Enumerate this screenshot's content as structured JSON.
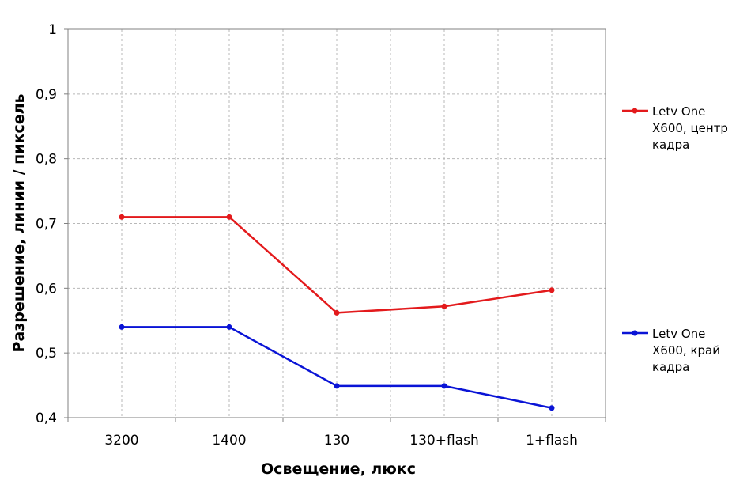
{
  "chart_data": {
    "type": "line",
    "title": "",
    "xlabel": "Освещение, люкс",
    "ylabel": "Разрешение, линии / пиксель",
    "categories": [
      "3200",
      "1400",
      "130",
      "130+flash",
      "1+flash"
    ],
    "ylim": [
      0.4,
      1.0
    ],
    "yticks": [
      0.4,
      0.5,
      0.6,
      0.7,
      0.8,
      0.9,
      1.0
    ],
    "ytick_labels": [
      "0,4",
      "0,5",
      "0,6",
      "0,7",
      "0,8",
      "0,9",
      "1"
    ],
    "grid": true,
    "legend_position": "right",
    "series": [
      {
        "name": "Letv One X600, центр кадра",
        "name_lines": [
          "Letv One",
          "X600, центр",
          "кадра"
        ],
        "color": "#e31a1c",
        "values": [
          0.71,
          0.71,
          0.562,
          0.572,
          0.597
        ]
      },
      {
        "name": "Letv One X600, край кадра",
        "name_lines": [
          "Letv One",
          "X600, край",
          "кадра"
        ],
        "color": "#0a14d6",
        "values": [
          0.54,
          0.54,
          0.449,
          0.449,
          0.415
        ]
      }
    ]
  }
}
